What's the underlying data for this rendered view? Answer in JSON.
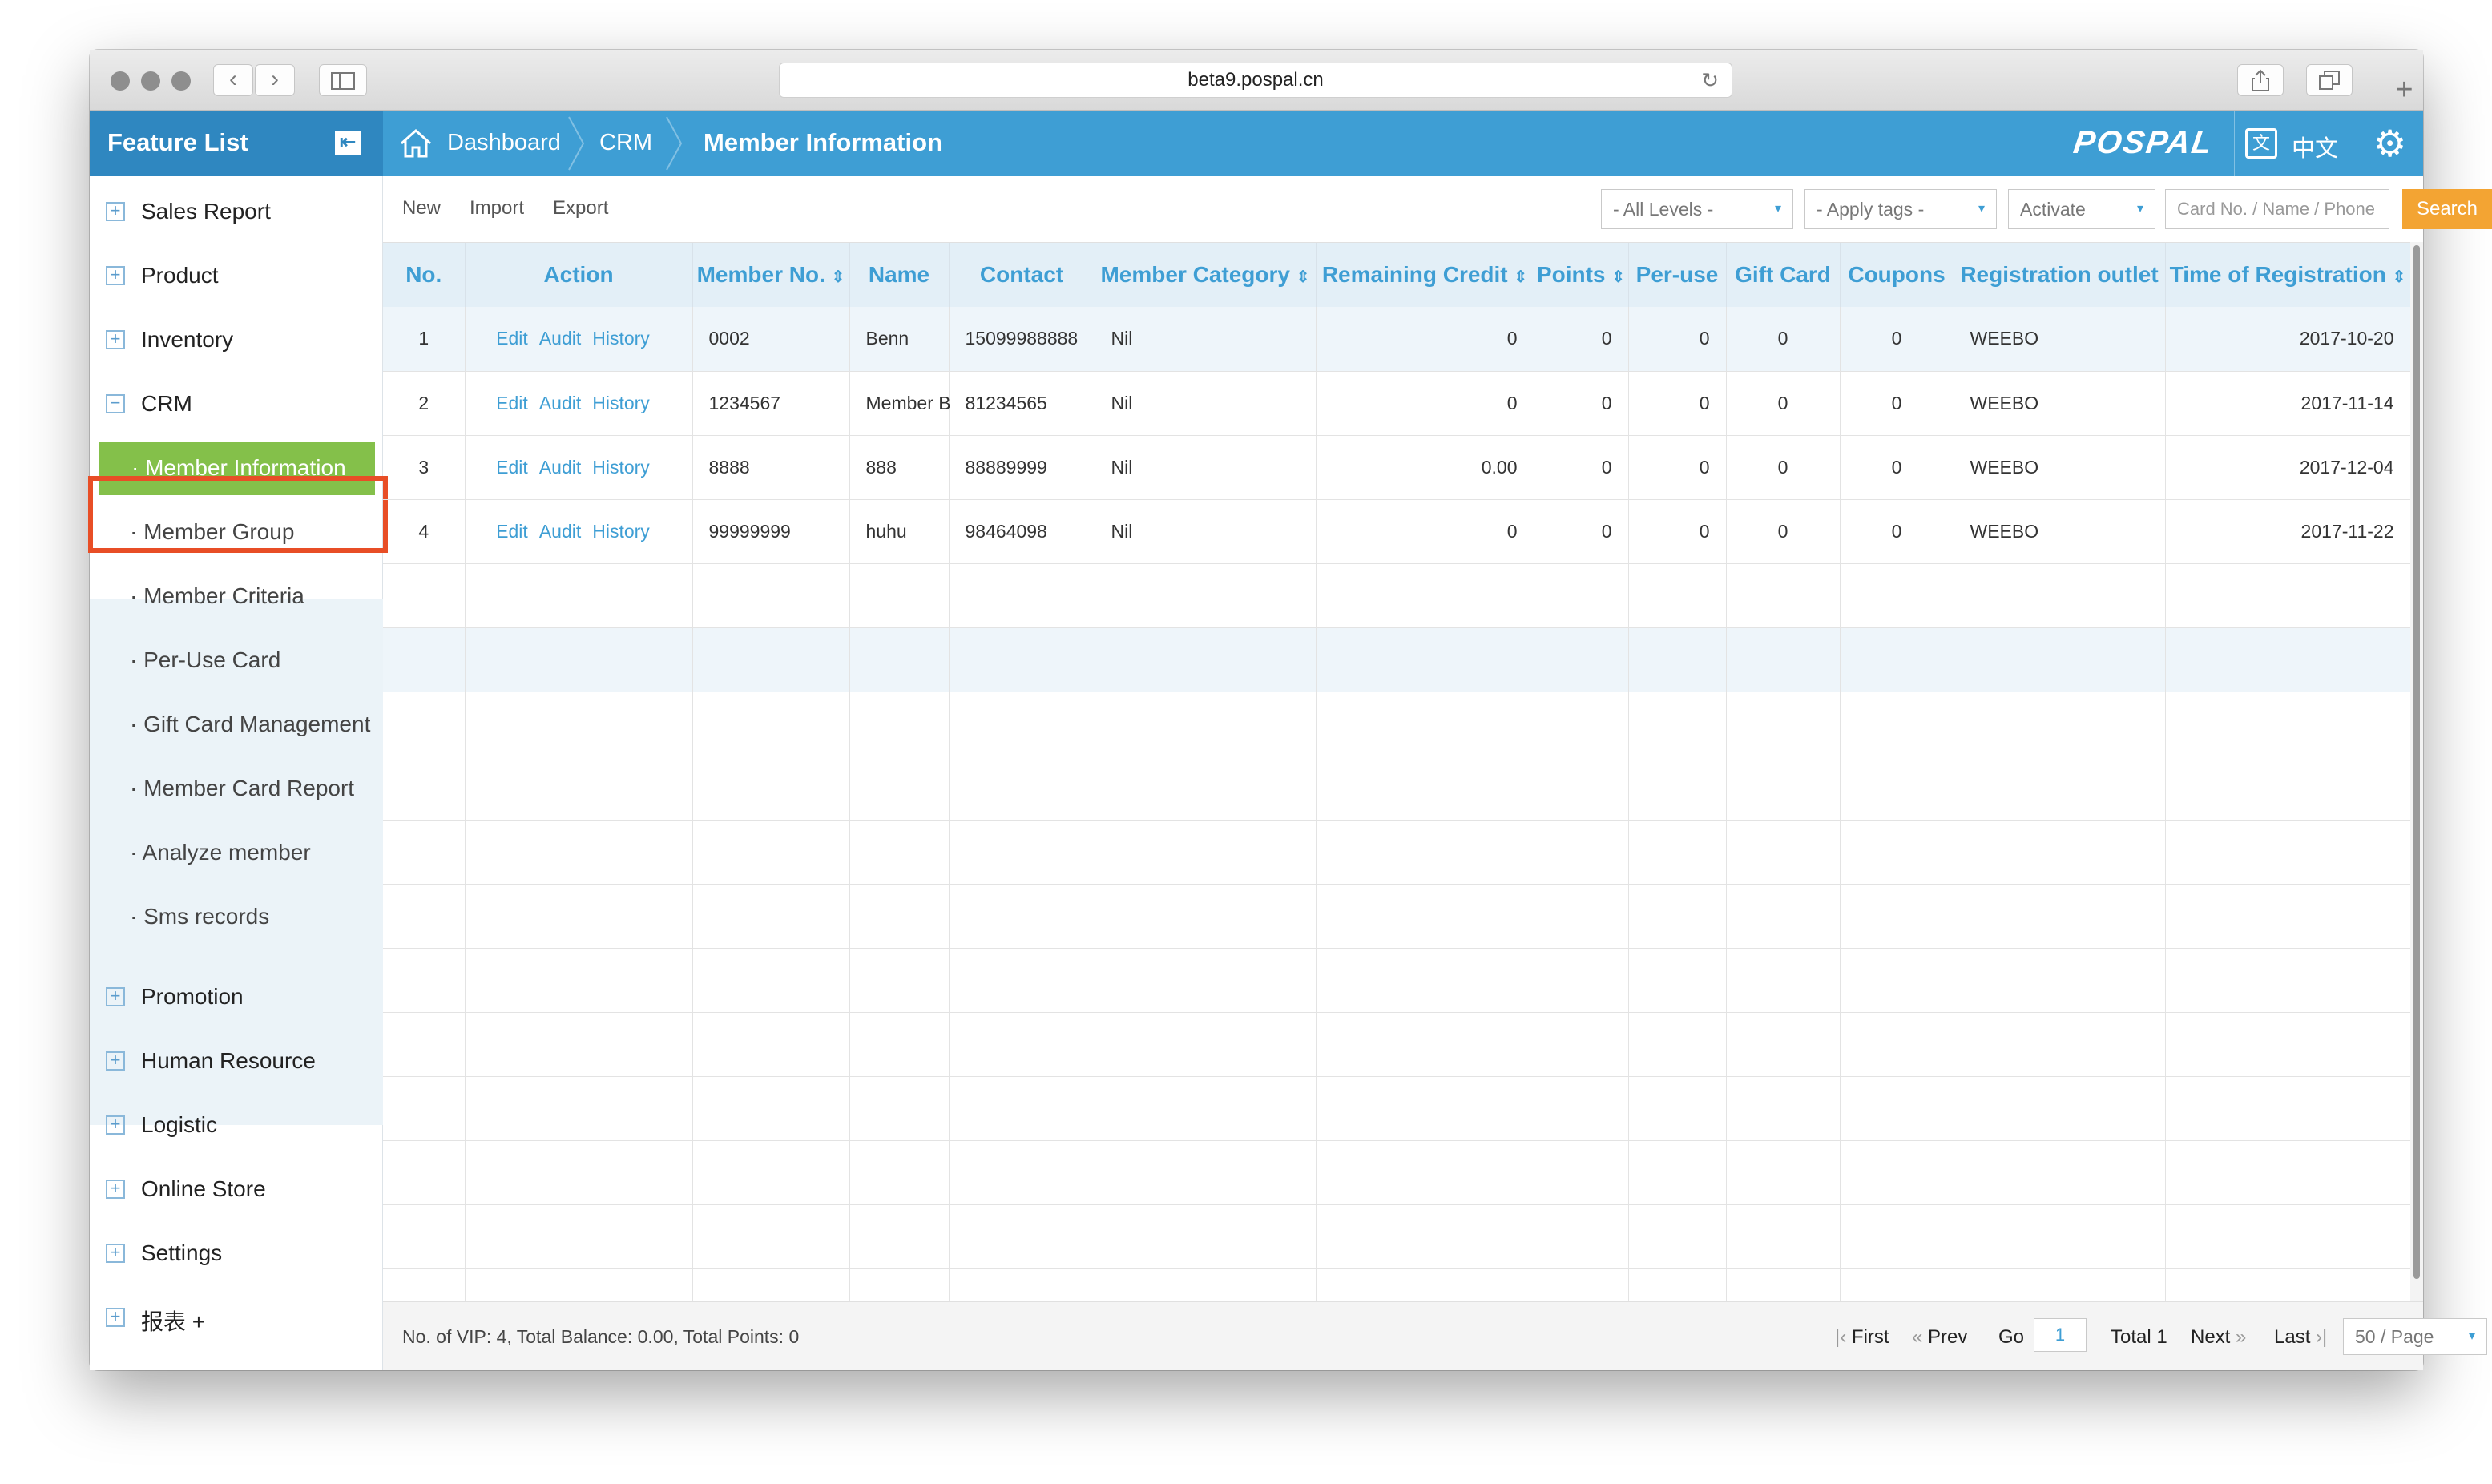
{
  "browser": {
    "url": "beta9.pospal.cn",
    "back_glyph": "‹",
    "forward_glyph": "›",
    "reload_glyph": "↻",
    "plus_glyph": "+"
  },
  "header": {
    "feature_list_title": "Feature List",
    "collapse_glyph": "⇤",
    "home_icon": "home-icon",
    "breadcrumbs": [
      "Dashboard",
      "CRM",
      "Member Information"
    ],
    "logo": "POSPAL",
    "lang_icon_glyph": "文",
    "lang_label": "中文",
    "gear_glyph": "⚙"
  },
  "sidebar": {
    "expand_glyph": "+",
    "collapse_glyph": "−",
    "top_items": [
      {
        "label": "Sales Report"
      },
      {
        "label": "Product"
      },
      {
        "label": "Inventory"
      },
      {
        "label": "CRM"
      }
    ],
    "sub_items": [
      {
        "label": "· Member Information",
        "active": true
      },
      {
        "label": "· Member Group"
      },
      {
        "label": "· Member Criteria"
      },
      {
        "label": "· Per-Use Card"
      },
      {
        "label": "· Gift Card Management"
      },
      {
        "label": "· Member Card Report"
      },
      {
        "label": "· Analyze member"
      },
      {
        "label": "· Sms records"
      }
    ],
    "bottom_items": [
      {
        "label": "Promotion"
      },
      {
        "label": "Human Resource"
      },
      {
        "label": "Logistic"
      },
      {
        "label": "Online Store"
      },
      {
        "label": "Settings"
      },
      {
        "label": "报表 +"
      }
    ]
  },
  "toolbar": {
    "new": "New",
    "import": "Import",
    "export": "Export",
    "levels": "- All Levels -",
    "tags": "- Apply tags -",
    "status": "Activate",
    "search_placeholder": "Card No. / Name / Phone",
    "search_button": "Search",
    "caret": "▾"
  },
  "table": {
    "columns": [
      "No.",
      "Action",
      "Member No.",
      "Name",
      "Contact",
      "Member Category",
      "Remaining Credit",
      "Points",
      "Per-use",
      "Gift Card",
      "Coupons",
      "Registration outlet",
      "Time of Registration"
    ],
    "sort_glyph": "⇕",
    "actions": [
      "Edit",
      "Audit",
      "History"
    ],
    "rows": [
      {
        "no": "1",
        "member_no": "0002",
        "name": "Benn",
        "contact": "15099988888",
        "category": "Nil",
        "credit": "0",
        "points": "0",
        "peruse": "0",
        "giftcard": "0",
        "coupons": "0",
        "outlet": "WEEBO",
        "time": "2017-10-20"
      },
      {
        "no": "2",
        "member_no": "1234567",
        "name": "Member B",
        "contact": "81234565",
        "category": "Nil",
        "credit": "0",
        "points": "0",
        "peruse": "0",
        "giftcard": "0",
        "coupons": "0",
        "outlet": "WEEBO",
        "time": "2017-11-14"
      },
      {
        "no": "3",
        "member_no": "8888",
        "name": "888",
        "contact": "88889999",
        "category": "Nil",
        "credit": "0.00",
        "points": "0",
        "peruse": "0",
        "giftcard": "0",
        "coupons": "0",
        "outlet": "WEEBO",
        "time": "2017-12-04"
      },
      {
        "no": "4",
        "member_no": "99999999",
        "name": "huhu",
        "contact": "98464098",
        "category": "Nil",
        "credit": "0",
        "points": "0",
        "peruse": "0",
        "giftcard": "0",
        "coupons": "0",
        "outlet": "WEEBO",
        "time": "2017-11-22"
      }
    ]
  },
  "footer": {
    "summary": "No. of VIP: 4, Total Balance: 0.00, Total Points: 0",
    "first": "First",
    "first_glyph": "|‹",
    "prev": "Prev",
    "prev_glyph": "«",
    "go": "Go",
    "page": "1",
    "total": "Total 1",
    "next": "Next",
    "next_glyph": "»",
    "last": "Last",
    "last_glyph": "›|",
    "per_page": "50 / Page",
    "caret": "▾"
  }
}
